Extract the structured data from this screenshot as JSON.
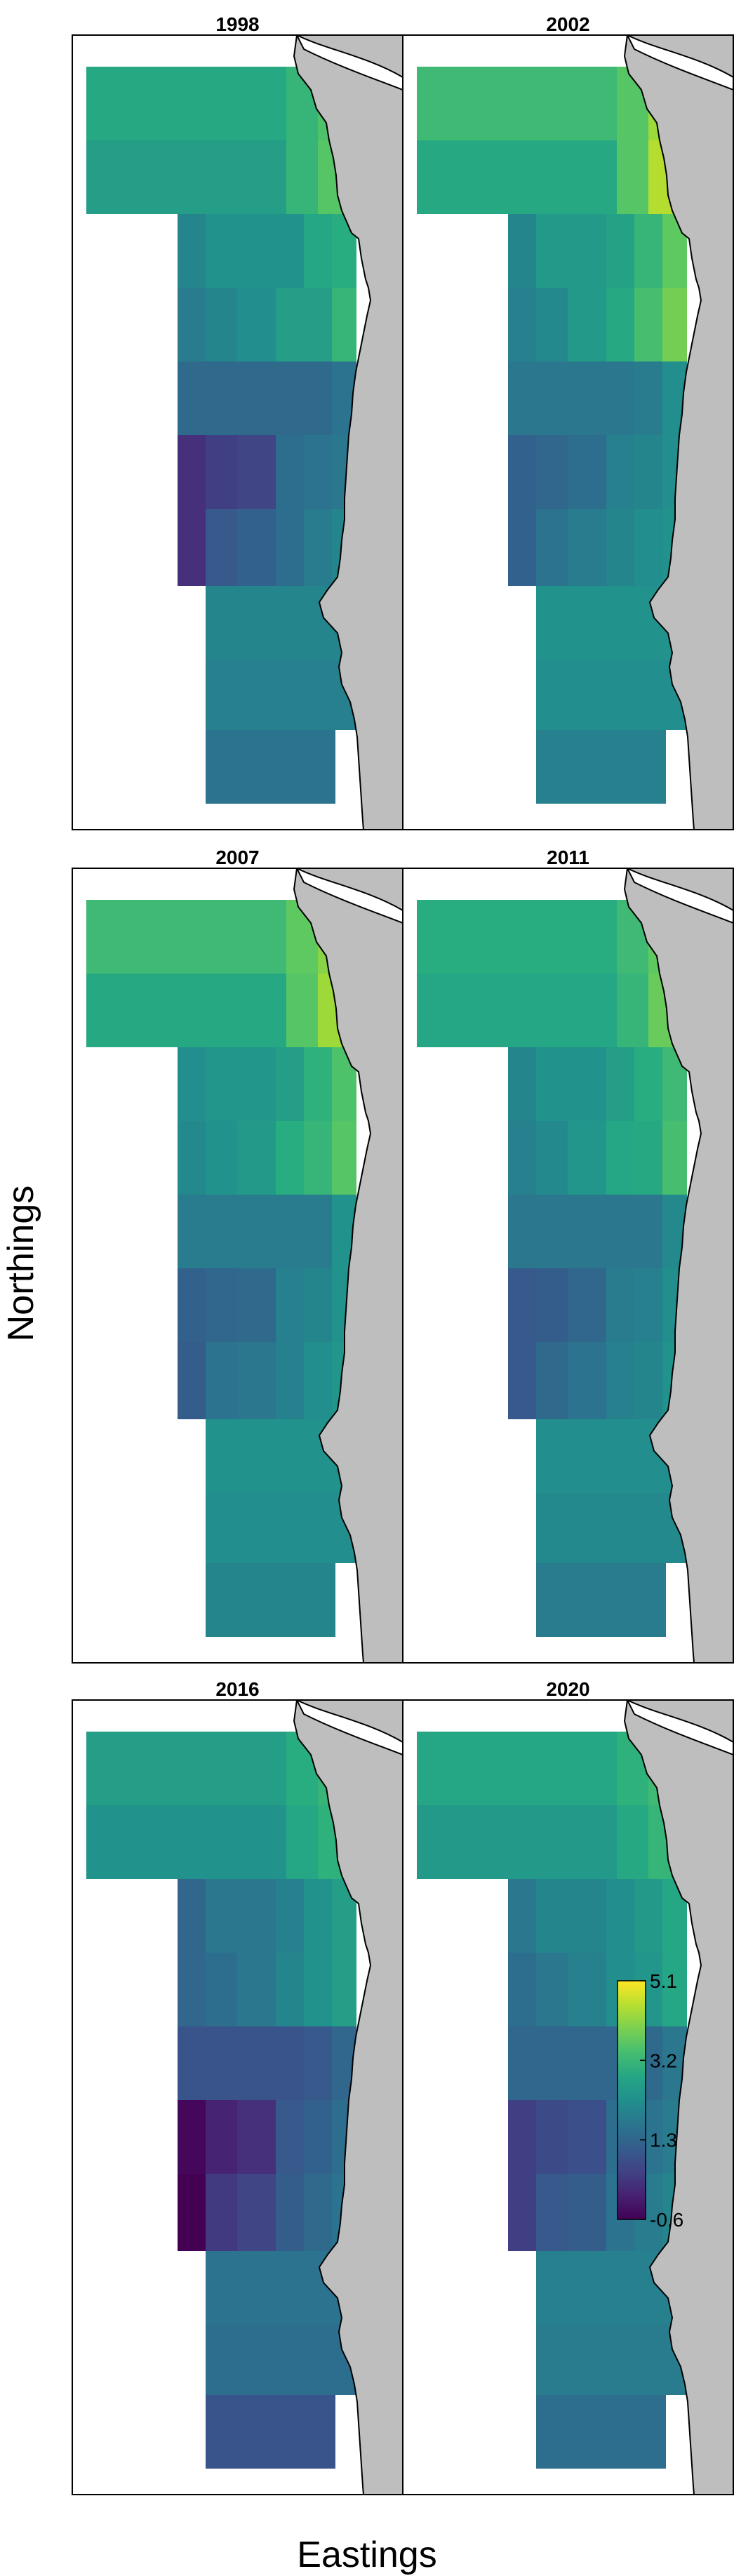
{
  "figure": {
    "x_label": "Eastings",
    "y_label": "Northings"
  },
  "colors": {
    "land": "#bebebe",
    "panel_border": "#000000",
    "background": "#ffffff",
    "palette": "viridis"
  },
  "legend": {
    "placement": "inside panel 2020, right",
    "ticks": [
      "5.1",
      "3.2",
      "1.3",
      "-0.6"
    ],
    "range": [
      -0.6,
      5.1
    ]
  },
  "map_data": {
    "cell_columns_per_row": "row cells listed west to east; rows listed north to south",
    "panels": [
      {
        "year": "1998",
        "rows": [
          [
            2.9,
            2.9,
            2.9,
            2.9,
            2.9,
            3.2,
            3.5
          ],
          [
            2.6,
            2.6,
            2.6,
            2.6,
            2.6,
            3.2,
            3.6
          ],
          [
            2.0,
            2.3,
            2.3,
            2.3,
            2.8,
            3.0
          ],
          [
            1.8,
            2.0,
            2.2,
            2.6,
            2.6,
            3.2
          ],
          [
            1.4,
            1.4,
            1.4,
            1.4,
            1.4,
            1.6
          ],
          [
            0.2,
            0.5,
            0.6,
            1.5,
            1.6,
            1.7
          ],
          [
            0.2,
            1.0,
            1.2,
            1.5,
            1.8,
            2.0
          ],
          [
            2.0,
            2.0,
            2.0,
            2.0,
            2.0,
            2.0
          ],
          [
            1.9,
            1.9,
            1.9,
            1.9,
            1.9,
            1.9
          ],
          [
            1.6,
            1.6,
            1.6,
            1.6,
            1.6
          ]
        ]
      },
      {
        "year": "2002",
        "rows": [
          [
            3.3,
            3.3,
            3.3,
            3.3,
            3.3,
            3.6,
            4.3
          ],
          [
            2.9,
            2.9,
            2.9,
            2.9,
            2.9,
            3.6,
            4.5
          ],
          [
            2.0,
            2.5,
            2.5,
            2.7,
            3.2,
            3.7
          ],
          [
            1.9,
            2.1,
            2.5,
            2.9,
            3.4,
            3.9
          ],
          [
            1.7,
            1.7,
            1.7,
            1.7,
            1.8,
            2.2
          ],
          [
            1.2,
            1.3,
            1.5,
            1.9,
            2.0,
            2.2
          ],
          [
            1.2,
            1.6,
            1.8,
            2.0,
            2.2,
            2.3
          ],
          [
            2.3,
            2.3,
            2.3,
            2.3,
            2.3,
            2.3
          ],
          [
            2.2,
            2.2,
            2.2,
            2.2,
            2.2,
            2.2
          ],
          [
            1.9,
            1.9,
            1.9,
            1.9,
            1.9
          ]
        ]
      },
      {
        "year": "2007",
        "rows": [
          [
            3.3,
            3.3,
            3.3,
            3.3,
            3.3,
            3.7,
            4.1
          ],
          [
            2.9,
            2.9,
            2.9,
            2.9,
            2.9,
            3.6,
            4.3
          ],
          [
            2.2,
            2.4,
            2.4,
            2.6,
            3.1,
            3.5
          ],
          [
            2.1,
            2.3,
            2.5,
            3.0,
            3.2,
            3.6
          ],
          [
            1.8,
            1.8,
            1.8,
            1.8,
            1.8,
            2.3
          ],
          [
            1.2,
            1.3,
            1.4,
            1.9,
            2.0,
            2.3
          ],
          [
            1.1,
            1.6,
            1.7,
            1.9,
            2.2,
            2.4
          ],
          [
            2.3,
            2.3,
            2.3,
            2.3,
            2.3,
            2.3
          ],
          [
            2.2,
            2.2,
            2.2,
            2.2,
            2.2,
            2.2
          ],
          [
            2.0,
            2.0,
            2.0,
            2.0,
            2.0
          ]
        ]
      },
      {
        "year": "2011",
        "rows": [
          [
            3.0,
            3.0,
            3.0,
            3.0,
            3.0,
            3.3,
            3.7
          ],
          [
            2.8,
            2.8,
            2.8,
            2.8,
            2.8,
            3.2,
            3.8
          ],
          [
            2.0,
            2.3,
            2.3,
            2.6,
            3.0,
            3.3
          ],
          [
            1.9,
            2.1,
            2.4,
            2.8,
            2.9,
            3.4
          ],
          [
            1.7,
            1.7,
            1.7,
            1.7,
            1.7,
            2.1
          ],
          [
            1.0,
            1.1,
            1.3,
            1.8,
            1.9,
            2.2
          ],
          [
            1.0,
            1.4,
            1.6,
            1.9,
            2.0,
            2.3
          ],
          [
            2.2,
            2.2,
            2.2,
            2.2,
            2.2,
            2.2
          ],
          [
            2.1,
            2.1,
            2.1,
            2.1,
            2.1,
            2.1
          ],
          [
            1.8,
            1.8,
            1.8,
            1.8,
            1.8
          ]
        ]
      },
      {
        "year": "2016",
        "rows": [
          [
            2.6,
            2.6,
            2.6,
            2.6,
            2.6,
            3.0,
            3.2
          ],
          [
            2.3,
            2.3,
            2.3,
            2.3,
            2.3,
            2.8,
            3.1
          ],
          [
            1.3,
            1.7,
            1.7,
            1.9,
            2.3,
            2.6
          ],
          [
            1.3,
            1.5,
            1.7,
            2.0,
            2.3,
            2.6
          ],
          [
            0.9,
            0.9,
            0.9,
            0.9,
            1.0,
            1.3
          ],
          [
            -0.5,
            0.0,
            0.2,
            1.0,
            1.2,
            1.5
          ],
          [
            -0.6,
            0.4,
            0.6,
            1.1,
            1.4,
            1.6
          ],
          [
            1.6,
            1.6,
            1.6,
            1.6,
            1.6,
            1.6
          ],
          [
            1.5,
            1.5,
            1.5,
            1.5,
            1.5,
            1.5
          ],
          [
            0.9,
            0.9,
            0.9,
            0.9,
            0.9
          ]
        ]
      },
      {
        "year": "2020",
        "rows": [
          [
            2.8,
            2.8,
            2.8,
            2.8,
            2.8,
            3.1,
            3.3
          ],
          [
            2.5,
            2.5,
            2.5,
            2.5,
            2.5,
            2.9,
            3.2
          ],
          [
            1.7,
            2.0,
            2.0,
            2.2,
            2.5,
            2.8
          ],
          [
            1.5,
            1.7,
            1.9,
            2.2,
            2.4,
            2.8
          ],
          [
            1.3,
            1.3,
            1.3,
            1.3,
            1.4,
            1.7
          ],
          [
            0.5,
            0.7,
            0.8,
            1.5,
            1.6,
            1.8
          ],
          [
            0.5,
            1.0,
            1.1,
            1.6,
            1.8,
            2.0
          ],
          [
            1.9,
            1.9,
            1.9,
            1.9,
            1.9,
            1.9
          ],
          [
            1.8,
            1.8,
            1.8,
            1.8,
            1.8,
            1.8
          ],
          [
            1.5,
            1.5,
            1.5,
            1.5,
            1.5
          ]
        ]
      }
    ]
  }
}
